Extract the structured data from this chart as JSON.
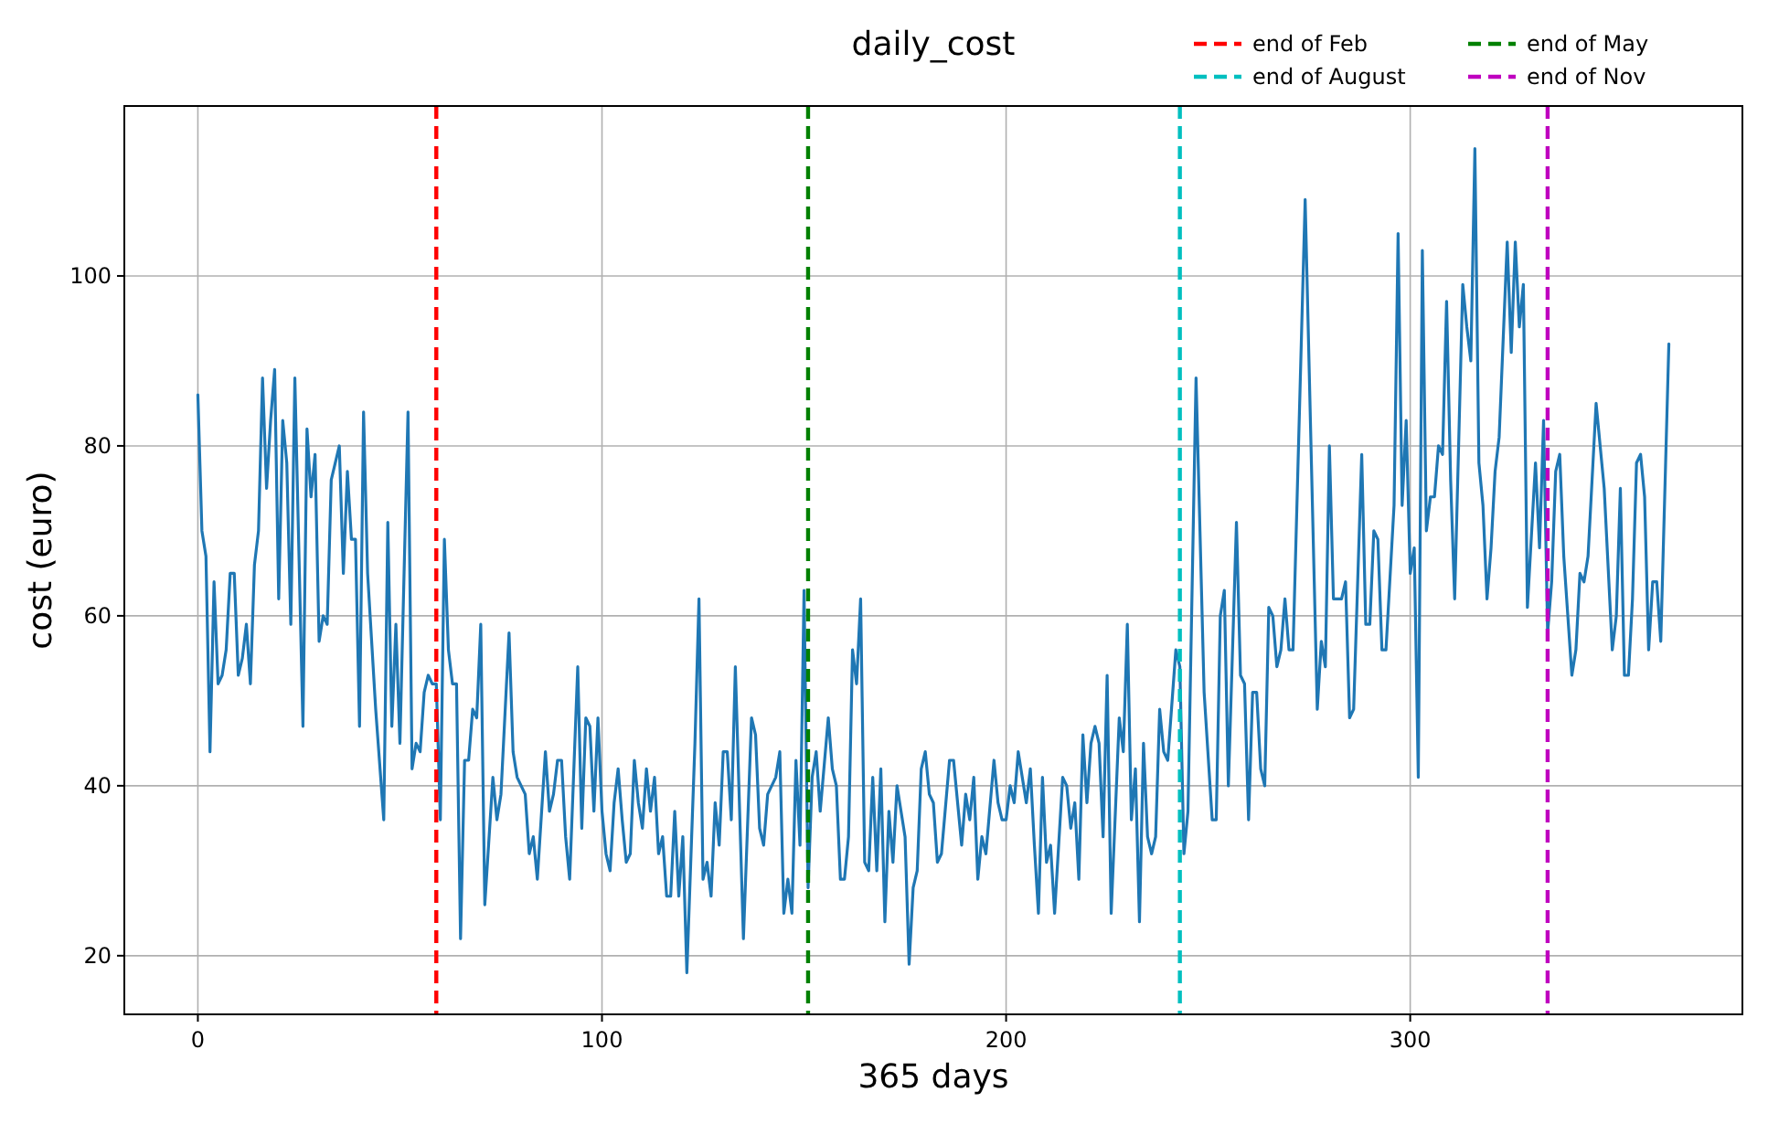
{
  "chart_data": {
    "type": "line",
    "title": "daily_cost",
    "xlabel": "365 days",
    "ylabel": "cost (euro)",
    "xlim": [
      -18.2,
      382.2
    ],
    "ylim": [
      13.1,
      120
    ],
    "xticks": [
      0,
      100,
      200,
      300
    ],
    "yticks": [
      20,
      40,
      60,
      80,
      100
    ],
    "grid": true,
    "legend": "top right",
    "line_style": "solid",
    "marker": "none",
    "ref_lines": [
      {
        "axis": "x",
        "value": 59,
        "label": "end of Feb",
        "color": "#ff0000",
        "line_style": "dashed"
      },
      {
        "axis": "x",
        "value": 151,
        "label": "end of May",
        "color": "#008000",
        "line_style": "dashed"
      },
      {
        "axis": "x",
        "value": 243,
        "label": "end of August",
        "color": "#00bfbf",
        "line_style": "dashed"
      },
      {
        "axis": "x",
        "value": 334,
        "label": "end of Nov",
        "color": "#bf00bf",
        "line_style": "dashed"
      }
    ],
    "series": [
      {
        "color": "#1f77b4",
        "x": [
          0,
          1,
          2,
          3,
          4,
          5,
          6,
          7,
          8,
          9,
          10,
          11,
          12,
          13,
          14,
          15,
          16,
          17,
          18,
          19,
          20,
          21,
          22,
          23,
          24,
          26,
          27,
          28,
          29,
          30,
          31,
          32,
          33,
          35,
          36,
          37,
          38,
          39,
          40,
          41,
          42,
          43,
          44,
          46,
          47,
          48,
          49,
          50,
          52,
          53,
          54,
          55,
          56,
          57,
          58,
          59,
          60,
          61,
          62,
          63,
          64,
          65,
          66,
          67,
          68,
          69,
          70,
          71,
          73,
          74,
          75,
          77,
          78,
          79,
          81,
          82,
          83,
          84,
          86,
          87,
          88,
          89,
          90,
          91,
          92,
          94,
          95,
          96,
          97,
          98,
          99,
          100,
          101,
          102,
          103,
          104,
          105,
          106,
          107,
          108,
          109,
          110,
          111,
          112,
          113,
          114,
          115,
          116,
          117,
          118,
          119,
          120,
          121,
          123,
          124,
          125,
          126,
          127,
          128,
          129,
          130,
          131,
          132,
          133,
          135,
          137,
          138,
          139,
          140,
          141,
          143,
          144,
          145,
          146,
          147,
          148,
          149,
          150,
          151,
          152,
          153,
          154,
          156,
          157,
          158,
          159,
          160,
          161,
          162,
          163,
          164,
          165,
          166,
          167,
          168,
          169,
          170,
          171,
          172,
          173,
          175,
          176,
          177,
          178,
          179,
          180,
          181,
          182,
          183,
          184,
          186,
          187,
          189,
          190,
          191,
          192,
          193,
          194,
          195,
          197,
          198,
          199,
          200,
          201,
          202,
          203,
          205,
          206,
          207,
          208,
          209,
          210,
          211,
          212,
          214,
          215,
          216,
          217,
          218,
          219,
          220,
          221,
          222,
          223,
          224,
          225,
          226,
          228,
          229,
          230,
          231,
          232,
          233,
          234,
          235,
          236,
          237,
          238,
          239,
          240,
          242,
          243,
          244,
          245,
          247,
          249,
          251,
          252,
          253,
          254,
          255,
          257,
          258,
          259,
          260,
          261,
          262,
          263,
          264,
          265,
          266,
          267,
          268,
          269,
          270,
          271,
          274,
          277,
          278,
          279,
          280,
          281,
          282,
          283,
          284,
          285,
          286,
          288,
          289,
          290,
          291,
          292,
          293,
          294,
          296,
          297,
          298,
          299,
          300,
          301,
          302,
          303,
          304,
          305,
          306,
          307,
          308,
          309,
          310,
          311,
          313,
          314,
          315,
          316,
          317,
          318,
          319,
          320,
          321,
          322,
          324,
          325,
          326,
          327,
          328,
          329,
          331,
          332,
          333,
          334,
          335,
          336,
          337,
          338,
          340,
          341,
          342,
          343,
          344,
          346,
          348,
          350,
          351,
          352,
          353,
          354,
          355,
          356,
          357,
          358,
          359,
          360,
          361,
          362,
          364
        ],
        "values": [
          86,
          70,
          67,
          44,
          64,
          52,
          53,
          56,
          65,
          65,
          53,
          55,
          59,
          52,
          66,
          70,
          88,
          75,
          83,
          89,
          62,
          83,
          78,
          59,
          88,
          47,
          82,
          74,
          79,
          57,
          60,
          59,
          76,
          80,
          65,
          77,
          69,
          69,
          47,
          84,
          65,
          57,
          49,
          36,
          71,
          47,
          59,
          45,
          84,
          42,
          45,
          44,
          51,
          53,
          52,
          52,
          36,
          69,
          56,
          52,
          52,
          22,
          43,
          43,
          49,
          48,
          59,
          26,
          41,
          36,
          39,
          58,
          44,
          41,
          39,
          32,
          34,
          29,
          44,
          37,
          39,
          43,
          43,
          34,
          29,
          54,
          35,
          48,
          47,
          37,
          48,
          37,
          32,
          30,
          38,
          42,
          36,
          31,
          32,
          43,
          38,
          35,
          42,
          37,
          41,
          32,
          34,
          27,
          27,
          37,
          27,
          34,
          18,
          45,
          62,
          29,
          31,
          27,
          38,
          33,
          44,
          44,
          36,
          54,
          22,
          48,
          46,
          35,
          33,
          39,
          41,
          44,
          25,
          29,
          25,
          43,
          33,
          63,
          28,
          41,
          44,
          37,
          48,
          42,
          40,
          29,
          29,
          34,
          56,
          52,
          62,
          31,
          30,
          41,
          30,
          42,
          24,
          37,
          31,
          40,
          34,
          19,
          28,
          30,
          42,
          44,
          39,
          38,
          31,
          32,
          43,
          43,
          33,
          39,
          36,
          41,
          29,
          34,
          32,
          43,
          38,
          36,
          36,
          40,
          38,
          44,
          38,
          42,
          33,
          25,
          41,
          31,
          33,
          25,
          41,
          40,
          35,
          38,
          29,
          46,
          38,
          45,
          47,
          45,
          34,
          53,
          25,
          48,
          44,
          59,
          36,
          42,
          24,
          45,
          34,
          32,
          34,
          49,
          44,
          43,
          56,
          54,
          32,
          37,
          88,
          51,
          36,
          36,
          60,
          63,
          40,
          71,
          53,
          52,
          36,
          51,
          51,
          42,
          40,
          61,
          60,
          54,
          56,
          62,
          56,
          56,
          109,
          49,
          57,
          54,
          80,
          62,
          62,
          62,
          64,
          48,
          49,
          79,
          59,
          59,
          70,
          69,
          56,
          56,
          73,
          105,
          73,
          83,
          65,
          68,
          41,
          103,
          70,
          74,
          74,
          80,
          79,
          97,
          76,
          62,
          99,
          94,
          90,
          115,
          78,
          73,
          62,
          68,
          77,
          81,
          104,
          91,
          104,
          94,
          99,
          61,
          78,
          68,
          83,
          58,
          64,
          77,
          79,
          67,
          53,
          56,
          65,
          64,
          67,
          85,
          75,
          56,
          60,
          75,
          53,
          53,
          62,
          78,
          79,
          74,
          56,
          64,
          64,
          57,
          92
        ]
      }
    ]
  }
}
